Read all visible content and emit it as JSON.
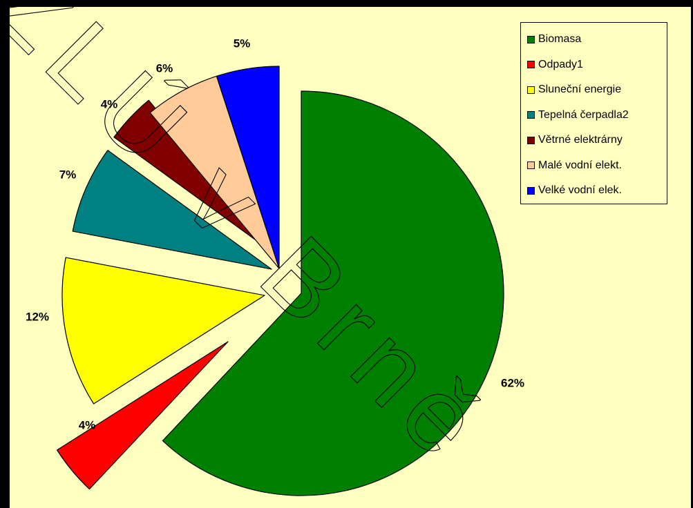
{
  "watermark": "ZLÚ v Brně",
  "chart_data": {
    "type": "pie",
    "exploded": true,
    "start": "12 o'clock",
    "direction": "clockwise",
    "legend_position": "right",
    "slices": [
      {
        "name": "Biomasa",
        "value": 62,
        "label": "62%",
        "color": "#008000"
      },
      {
        "name": "Odpady1",
        "value": 4,
        "label": "4%",
        "color": "#FF0000"
      },
      {
        "name": "Sluneční energie",
        "value": 12,
        "label": "12%",
        "color": "#FFFF00"
      },
      {
        "name": "Tepelná čerpadla2",
        "value": 7,
        "label": "7%",
        "color": "#008080"
      },
      {
        "name": "Větrné elektrárny",
        "value": 4,
        "label": "4%",
        "color": "#800000"
      },
      {
        "name": "Malé vodní elekt.",
        "value": 6,
        "label": "6%",
        "color": "#FFCC99"
      },
      {
        "name": "Velké vodní elek.",
        "value": 5,
        "label": "5%",
        "color": "#0000FF"
      }
    ]
  }
}
